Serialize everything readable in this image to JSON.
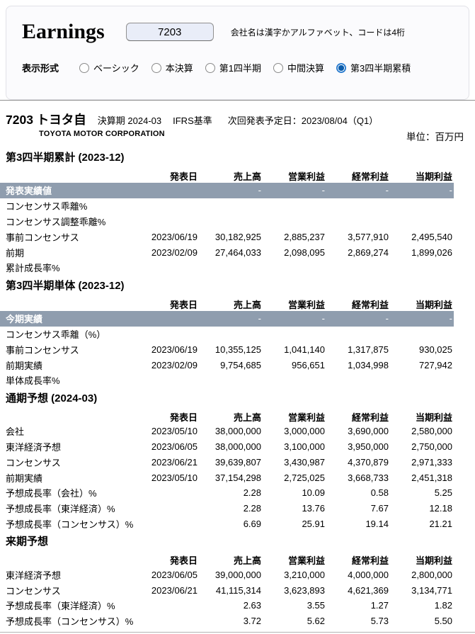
{
  "colors": {
    "accent_blue": "#0f6cbd",
    "highlight_row_bg": "#8f9dae",
    "input_bg": "#e9edf8"
  },
  "panel": {
    "app_title": "Earnings",
    "code_value": "7203",
    "hint": "会社名は漢字かアルファベット、コードは4桁",
    "format_label": "表示形式",
    "format_options": [
      {
        "label": "ベーシック",
        "selected": false
      },
      {
        "label": "本決算",
        "selected": false
      },
      {
        "label": "第1四半期",
        "selected": false
      },
      {
        "label": "中間決算",
        "selected": false
      },
      {
        "label": "第3四半期累積",
        "selected": true
      }
    ]
  },
  "company": {
    "title": "7203 トヨタ自",
    "fiscal": "決算期 2024-03",
    "standard": "IFRS基準",
    "next_label": "次回発表予定日：",
    "next_date": "2023/08/04（Q1）",
    "name_en": "TOYOTA MOTOR CORPORATION",
    "unit": "単位：百万円"
  },
  "table_columns": [
    "発表日",
    "売上高",
    "営業利益",
    "経常利益",
    "当期利益"
  ],
  "sections": [
    {
      "title": "第3四半期累計 (2023-12)",
      "rows": [
        {
          "label": "発表実績値",
          "highlight": true,
          "cells": [
            "",
            "-",
            "-",
            "-",
            "-"
          ]
        },
        {
          "label": "コンセンサス乖離%",
          "cells": [
            "",
            "",
            "",
            "",
            ""
          ]
        },
        {
          "label": "コンセンサス調整乖離%",
          "cells": [
            "",
            "",
            "",
            "",
            ""
          ]
        },
        {
          "label": "事前コンセンサス",
          "cells": [
            "2023/06/19",
            "30,182,925",
            "2,885,237",
            "3,577,910",
            "2,495,540"
          ]
        },
        {
          "label": "前期",
          "cells": [
            "2023/02/09",
            "27,464,033",
            "2,098,095",
            "2,869,274",
            "1,899,026"
          ]
        },
        {
          "label": "累計成長率%",
          "cells": [
            "",
            "",
            "",
            "",
            ""
          ]
        }
      ]
    },
    {
      "title": "第3四半期単体 (2023-12)",
      "rows": [
        {
          "label": "今期実績",
          "highlight": true,
          "cells": [
            "",
            "-",
            "-",
            "-",
            "-"
          ]
        },
        {
          "label": "コンセンサス乖離（%）",
          "cells": [
            "",
            "",
            "",
            "",
            ""
          ]
        },
        {
          "label": "事前コンセンサス",
          "cells": [
            "2023/06/19",
            "10,355,125",
            "1,041,140",
            "1,317,875",
            "930,025"
          ]
        },
        {
          "label": "前期実績",
          "cells": [
            "2023/02/09",
            "9,754,685",
            "956,651",
            "1,034,998",
            "727,942"
          ]
        },
        {
          "label": "単体成長率%",
          "cells": [
            "",
            "",
            "",
            "",
            ""
          ]
        }
      ]
    },
    {
      "title": "通期予想 (2024-03)",
      "rows": [
        {
          "label": "会社",
          "cells": [
            "2023/05/10",
            "38,000,000",
            "3,000,000",
            "3,690,000",
            "2,580,000"
          ]
        },
        {
          "label": "東洋経済予想",
          "cells": [
            "2023/06/05",
            "38,000,000",
            "3,100,000",
            "3,950,000",
            "2,750,000"
          ]
        },
        {
          "label": "コンセンサス",
          "cells": [
            "2023/06/21",
            "39,639,807",
            "3,430,987",
            "4,370,879",
            "2,971,333"
          ]
        },
        {
          "label": "前期実績",
          "cells": [
            "2023/05/10",
            "37,154,298",
            "2,725,025",
            "3,668,733",
            "2,451,318"
          ]
        },
        {
          "label": "予想成長率（会社）%",
          "cells": [
            "",
            "2.28",
            "10.09",
            "0.58",
            "5.25"
          ]
        },
        {
          "label": "予想成長率（東洋経済）%",
          "cells": [
            "",
            "2.28",
            "13.76",
            "7.67",
            "12.18"
          ]
        },
        {
          "label": "予想成長率（コンセンサス）%",
          "cells": [
            "",
            "6.69",
            "25.91",
            "19.14",
            "21.21"
          ]
        }
      ]
    },
    {
      "title": "来期予想",
      "rows": [
        {
          "label": "東洋経済予想",
          "cells": [
            "2023/06/05",
            "39,000,000",
            "3,210,000",
            "4,000,000",
            "2,800,000"
          ]
        },
        {
          "label": "コンセンサス",
          "cells": [
            "2023/06/21",
            "41,115,314",
            "3,623,893",
            "4,621,369",
            "3,134,771"
          ]
        },
        {
          "label": "予想成長率（東洋経済）%",
          "cells": [
            "",
            "2.63",
            "3.55",
            "1.27",
            "1.82"
          ]
        },
        {
          "label": "予想成長率（コンセンサス）%",
          "cells": [
            "",
            "3.72",
            "5.62",
            "5.73",
            "5.50"
          ]
        }
      ]
    }
  ]
}
